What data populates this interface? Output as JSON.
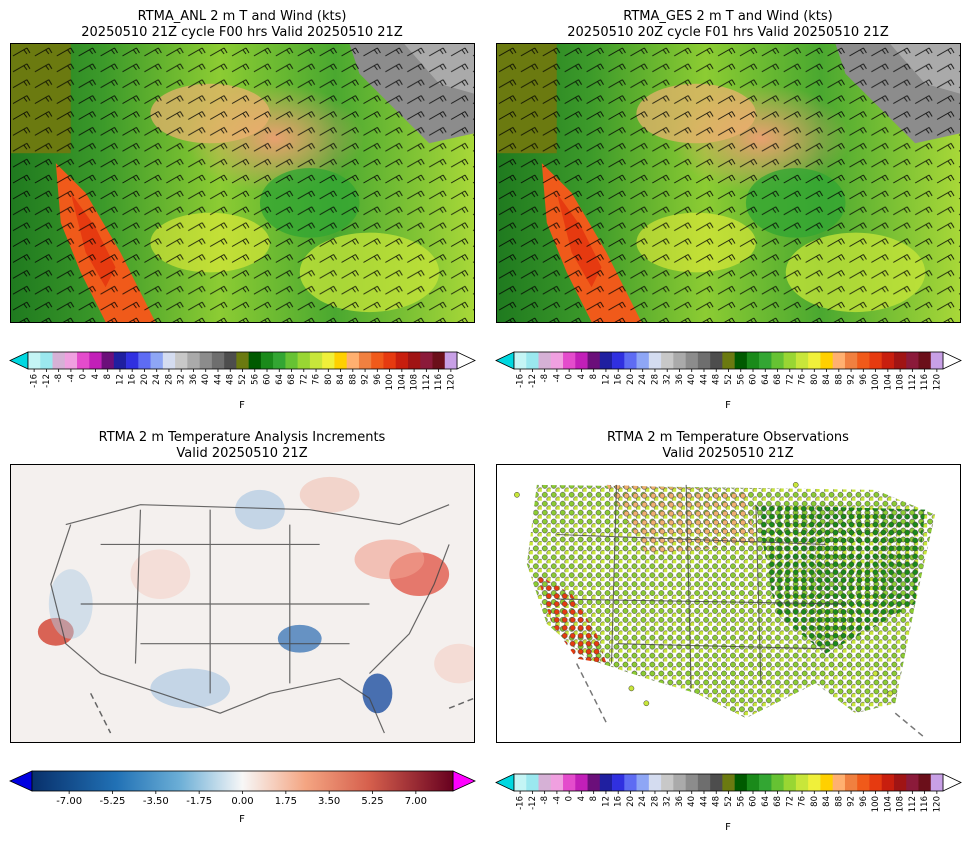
{
  "panels": [
    {
      "title": "RTMA_ANL 2 m T and Wind (kts)",
      "subtitle": "20250510 21Z cycle F00 hrs Valid 20250510 21Z"
    },
    {
      "title": "RTMA_GES 2 m T and Wind (kts)",
      "subtitle": "20250510 20Z cycle F01 hrs Valid 20250510 21Z"
    },
    {
      "title": "RTMA 2 m Temperature Analysis Increments",
      "subtitle": "Valid 20250510 21Z"
    },
    {
      "title": "RTMA 2 m Temperature Observations",
      "subtitle": "Valid 20250510 21Z"
    }
  ],
  "temp_colorbar": {
    "unit": "F",
    "ticks": [
      "-16",
      "-12",
      "-8",
      "-4",
      "0",
      "4",
      "8",
      "12",
      "16",
      "20",
      "24",
      "28",
      "32",
      "36",
      "40",
      "44",
      "48",
      "52",
      "56",
      "60",
      "64",
      "68",
      "72",
      "76",
      "80",
      "84",
      "88",
      "92",
      "96",
      "100",
      "104",
      "108",
      "112",
      "116",
      "120"
    ],
    "colors": [
      "#c4f5f5",
      "#9be8ef",
      "#d6b1d6",
      "#f0a0e0",
      "#e44ccc",
      "#c21fb8",
      "#6b0f7a",
      "#1f1fa0",
      "#3030e0",
      "#5e6cf3",
      "#8ea6f5",
      "#d4dcf0",
      "#c8c8c8",
      "#aaaaaa",
      "#8c8c8c",
      "#6e6e6e",
      "#4d4d4d",
      "#6b7a10",
      "#005a00",
      "#1a8a1a",
      "#33a633",
      "#66c233",
      "#99d633",
      "#c8e63a",
      "#f0f03a",
      "#ffd000",
      "#ffb070",
      "#f08040",
      "#f05a1a",
      "#e63a10",
      "#c81e0e",
      "#a01414",
      "#8b1a3a",
      "#6b0f1a",
      "#c8a0e6"
    ],
    "under_color": "#00d8e0",
    "over_color": "#ffffff"
  },
  "incr_colorbar": {
    "unit": "F",
    "ticks": [
      "-7.00",
      "-5.25",
      "-3.50",
      "-1.75",
      "0.00",
      "1.75",
      "3.50",
      "5.25",
      "7.00"
    ],
    "range": [
      -8.5,
      8.5
    ],
    "under_color": "#0000e0",
    "over_color": "#ff00ff"
  }
}
